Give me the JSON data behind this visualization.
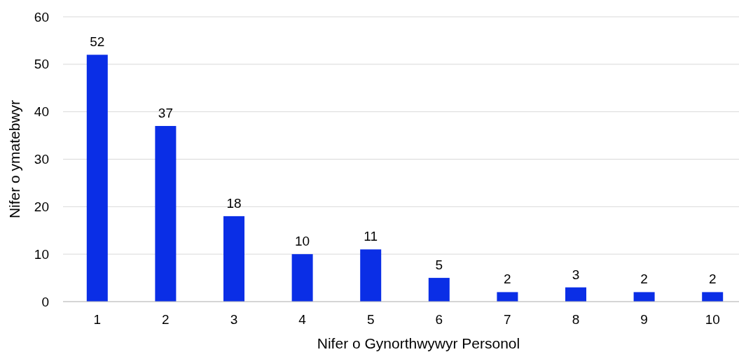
{
  "chart_data": {
    "type": "bar",
    "xlabel": "Nifer o Gynorthwywyr Personol",
    "ylabel": "Nifer o ymatebwyr",
    "categories": [
      "1",
      "2",
      "3",
      "4",
      "5",
      "6",
      "7",
      "8",
      "9",
      "10"
    ],
    "values": [
      52,
      37,
      18,
      10,
      11,
      5,
      2,
      3,
      2,
      2
    ],
    "color": "#0a2ee6",
    "ylim": [
      0,
      60
    ],
    "yticks": [
      0,
      10,
      20,
      30,
      40,
      50,
      60
    ],
    "grid": "y",
    "data_labels": true
  }
}
